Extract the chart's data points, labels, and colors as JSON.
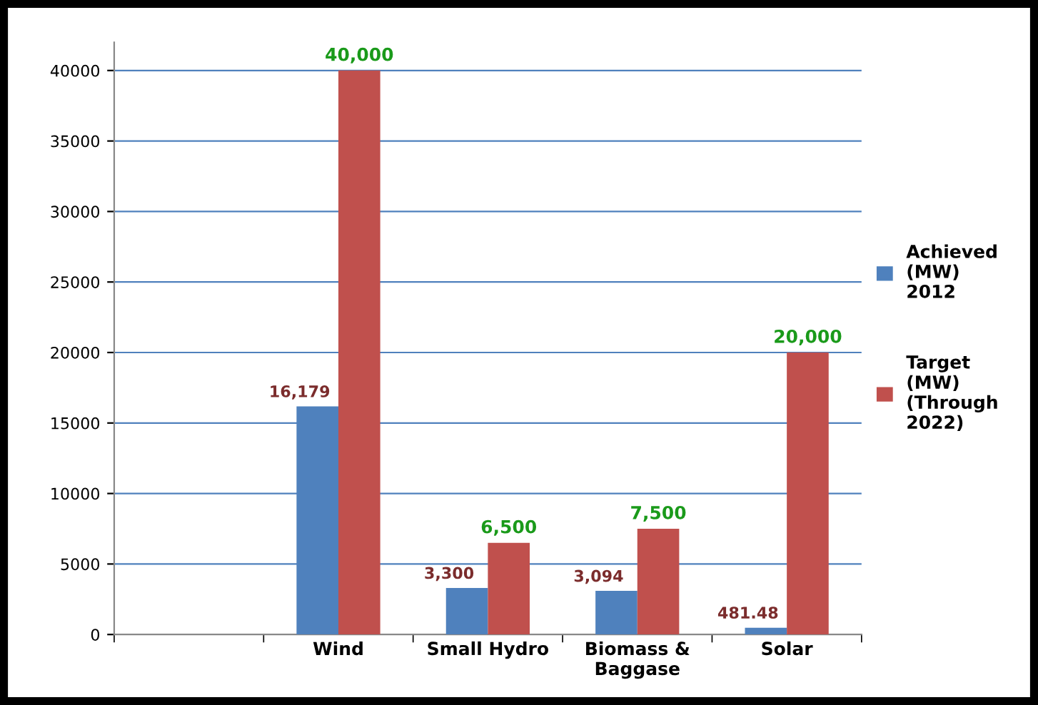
{
  "chart_data": {
    "type": "bar",
    "categories": [
      null,
      "Wind",
      "Small Hydro",
      "Biomass &\nBaggase",
      "Solar"
    ],
    "series": [
      {
        "name": "Achieved\n(MW)\n2012",
        "color": "#4f81bd",
        "values": [
          null,
          16179,
          3300,
          3094,
          481.48
        ],
        "value_labels": [
          null,
          "16,179",
          "3,300",
          "3,094",
          "481.48"
        ]
      },
      {
        "name": "Target\n(MW)\n(Through\n2022)",
        "color": "#c0504d",
        "values": [
          null,
          40000,
          6500,
          7500,
          20000
        ],
        "value_labels": [
          null,
          "40,000",
          "6,500",
          "7,500",
          "20,000"
        ]
      }
    ],
    "ylim": [
      0,
      42000
    ],
    "yticks": [
      0,
      5000,
      10000,
      15000,
      20000,
      25000,
      30000,
      35000,
      40000
    ],
    "grid": "y",
    "legend": "right"
  }
}
